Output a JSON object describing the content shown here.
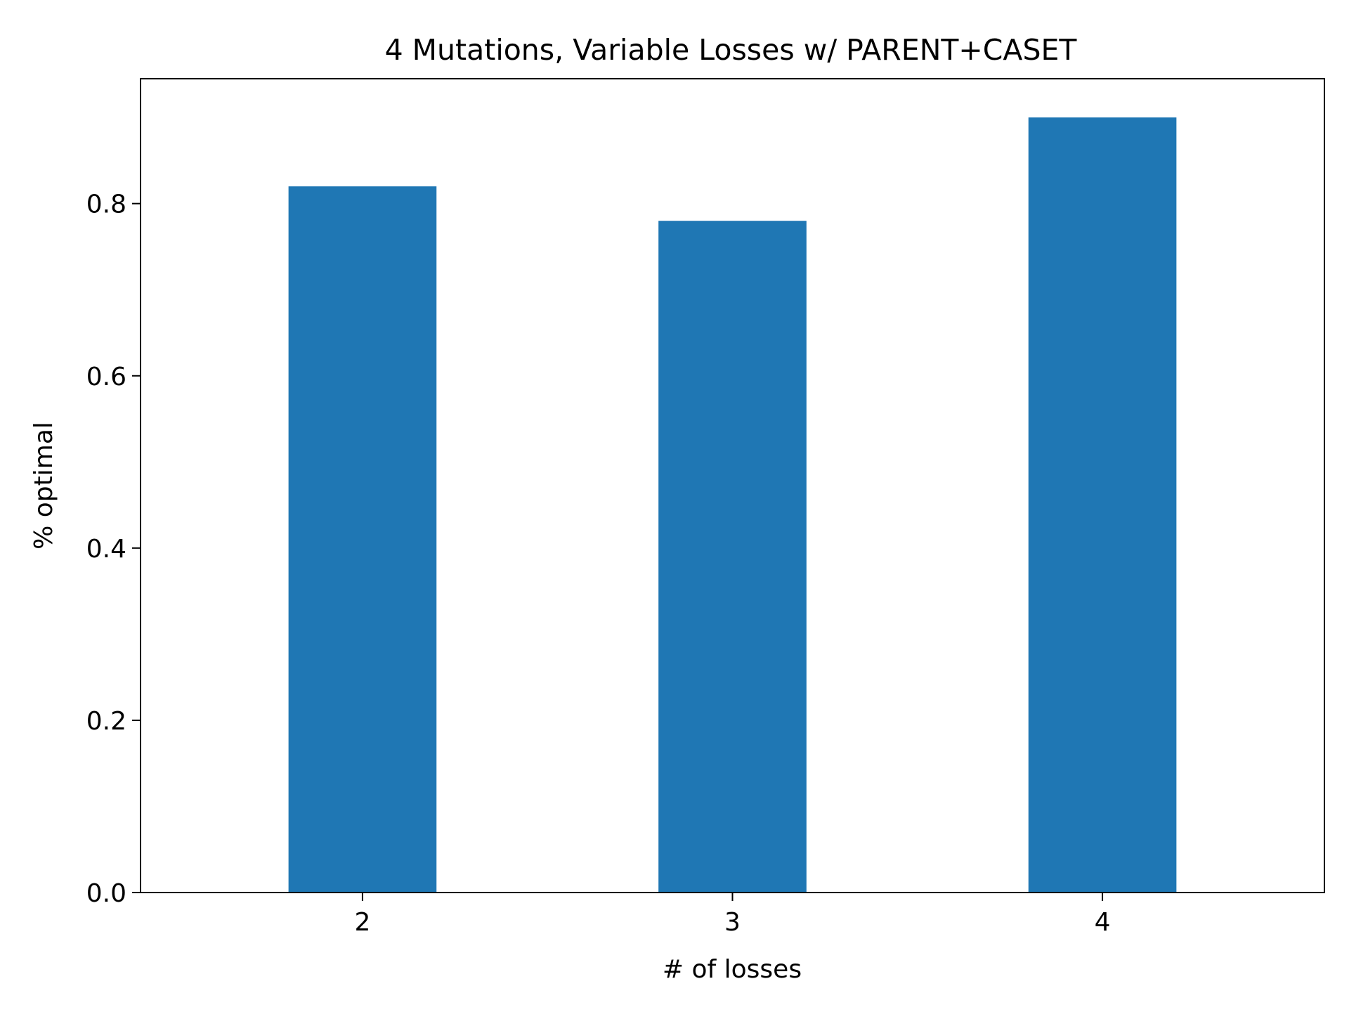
{
  "chart_data": {
    "type": "bar",
    "title": "4 Mutations, Variable Losses w/ PARENT+CASET",
    "xlabel": "# of losses",
    "ylabel": "% optimal",
    "categories": [
      "2",
      "3",
      "4"
    ],
    "values": [
      0.82,
      0.78,
      0.9
    ],
    "ylim": [
      0,
      0.945
    ],
    "yticks": [
      "0.0",
      "0.2",
      "0.4",
      "0.6",
      "0.8"
    ],
    "bar_color": "#1f77b4",
    "grid": false,
    "legend": "none"
  }
}
